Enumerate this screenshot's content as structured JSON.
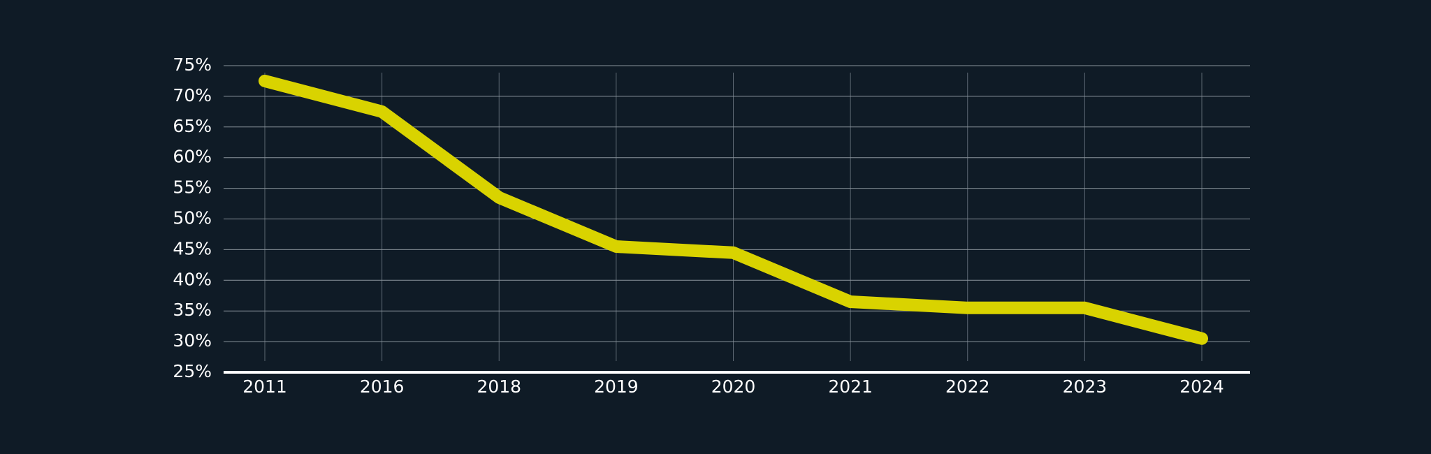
{
  "chart_data": {
    "type": "line",
    "categories": [
      "2011",
      "2016",
      "2018",
      "2019",
      "2020",
      "2021",
      "2022",
      "2023",
      "2024"
    ],
    "values": [
      72.5,
      67.5,
      53.5,
      45.5,
      44.5,
      36.5,
      35.5,
      35.5,
      30.5
    ],
    "color": "#d9d300",
    "ylim": [
      25,
      75
    ],
    "yticks": [
      {
        "value": 25,
        "label": "25%"
      },
      {
        "value": 30,
        "label": "30%"
      },
      {
        "value": 35,
        "label": "35%"
      },
      {
        "value": 40,
        "label": "40%"
      },
      {
        "value": 45,
        "label": "45%"
      },
      {
        "value": 50,
        "label": "50%"
      },
      {
        "value": 55,
        "label": "55%"
      },
      {
        "value": 60,
        "label": "60%"
      },
      {
        "value": 65,
        "label": "65%"
      },
      {
        "value": 70,
        "label": "70%"
      },
      {
        "value": 75,
        "label": "75%"
      }
    ],
    "grid": true
  }
}
